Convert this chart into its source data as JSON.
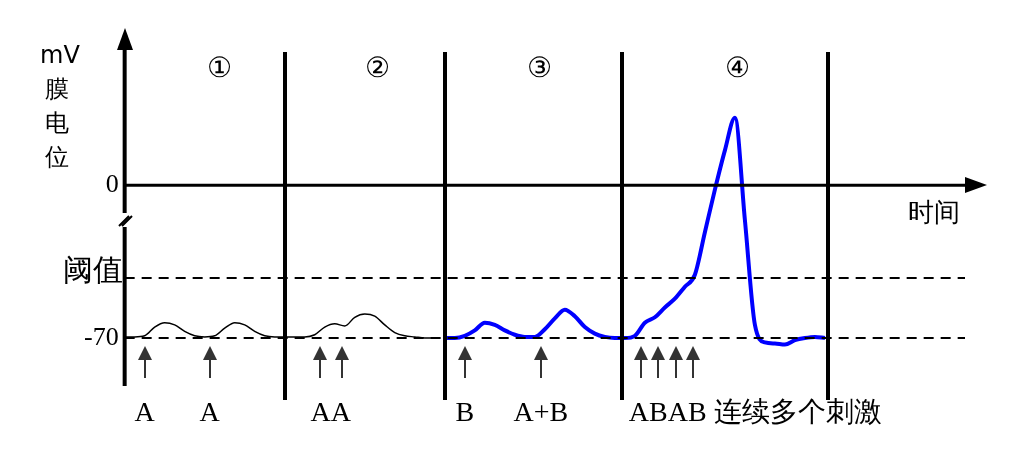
{
  "chart_data": {
    "type": "line",
    "xlabel": "时间",
    "ylabel": "mV 膜电位",
    "categories": [
      null,
      null,
      null,
      null,
      null,
      null,
      null,
      null,
      null,
      null,
      null,
      null,
      null,
      null,
      null,
      null,
      null,
      null,
      null,
      null,
      null,
      null,
      null,
      null,
      null,
      null,
      null,
      null,
      null,
      null,
      null,
      null,
      null,
      null,
      null,
      null,
      null,
      null,
      null,
      null,
      null,
      null,
      null,
      null,
      null,
      null,
      null,
      null,
      null,
      null,
      null,
      null,
      null,
      null,
      null,
      null,
      null,
      null,
      null,
      null,
      null,
      null,
      null,
      null,
      null,
      null,
      null,
      null,
      null,
      null,
      null,
      null,
      null,
      null,
      null,
      null,
      null,
      null,
      null,
      null,
      null,
      null,
      null,
      null,
      null
    ],
    "series": [
      {
        "color": "#000000",
        "values": [
          -69.5,
          -69.5,
          -69,
          -65,
          -63,
          -64,
          -67,
          -69,
          -69.5,
          -69,
          -65.5,
          -63,
          -64,
          -67,
          -69,
          -69.5,
          -69.5,
          -69.5,
          -69.5,
          -68.5,
          -65,
          -63.5,
          -64.5,
          -60.5,
          -59,
          -60,
          -64,
          -67.5,
          -69,
          -69.5,
          -70,
          -70,
          null,
          null,
          null,
          null,
          null,
          null,
          null,
          null,
          null,
          null,
          null,
          null,
          null,
          null,
          null,
          null,
          null,
          null,
          null,
          null,
          null,
          null,
          null,
          null,
          null,
          null,
          null,
          null,
          null,
          null,
          null,
          null,
          null,
          null,
          null,
          null,
          null,
          null,
          null,
          null,
          null,
          null,
          null,
          null,
          null,
          null,
          null,
          null,
          null,
          null,
          null,
          null,
          null
        ]
      },
      {
        "color": "#0000ff",
        "values": [
          null,
          null,
          null,
          null,
          null,
          null,
          null,
          null,
          null,
          null,
          null,
          null,
          null,
          null,
          null,
          null,
          null,
          null,
          null,
          null,
          null,
          null,
          null,
          null,
          null,
          null,
          null,
          null,
          null,
          null,
          null,
          null,
          -70,
          -70,
          -69,
          -66.5,
          -63,
          -64,
          -66.5,
          -68.5,
          -69.5,
          -69.5,
          -66,
          -61,
          -57,
          -60,
          -65,
          -68,
          -69.5,
          -70,
          -70,
          -69,
          -63,
          -60.5,
          -56,
          -52,
          -46.5,
          -41,
          -21.5,
          -2,
          16,
          31,
          -16,
          -64,
          -72,
          -72.5,
          -73,
          -71,
          -70,
          -69.5,
          -70,
          null,
          null,
          null,
          null,
          null,
          null,
          null,
          null,
          null,
          null,
          null,
          null,
          null,
          null
        ]
      }
    ],
    "ylim": [
      -92,
      62
    ],
    "yticks": [
      -70,
      0
    ],
    "tick_labels": "y",
    "legend": false,
    "ref_lines": [
      {
        "axis": "y",
        "value": -42.5,
        "label": "阈值",
        "line_style": "dashed"
      },
      {
        "axis": "y",
        "value": -70,
        "line_style": "dashed"
      }
    ],
    "annotations": [
      "①",
      "②",
      "③",
      "④",
      "A",
      "A",
      "AA",
      "B",
      "A+B",
      "ABAB 连续多个刺激"
    ]
  }
}
